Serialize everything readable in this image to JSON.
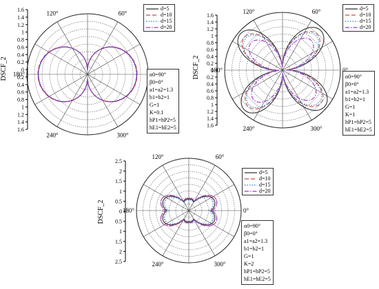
{
  "colors": {
    "d5": "#333333",
    "d10": "#c0504d",
    "d15": "#2e75b6",
    "d20": "#9b30d0"
  },
  "chart_data": [
    {
      "type": "polar",
      "ylabel": "DSCF_2",
      "angle_labels": [
        "120°",
        "60°",
        "180°",
        "0°",
        "240°",
        "300°"
      ],
      "r_ticks": [
        "1.6",
        "1.4",
        "1.2",
        "1",
        "0.8",
        "0.6",
        "0.4",
        "0.2",
        "0",
        "0.2",
        "0.4",
        "0.6",
        "0.8",
        "1",
        "1.2",
        "1.4",
        "1.6"
      ],
      "r_max": 1.6,
      "legend": [
        "d=5",
        "d=10",
        "d=15",
        "d=20"
      ],
      "params": [
        "α0=90°",
        "β0=0°",
        "a1=a2=1.3",
        "b1=b2=1",
        "G=1",
        "K=0.1",
        "hP1=hP2=5",
        "hE1=hE2=5"
      ],
      "series": [
        {
          "name": "d=5",
          "peak": 1.3,
          "shape": "dipole"
        },
        {
          "name": "d=10",
          "peak": 1.31,
          "shape": "dipole"
        },
        {
          "name": "d=15",
          "peak": 1.29,
          "shape": "dipole"
        },
        {
          "name": "d=20",
          "peak": 1.3,
          "shape": "dipole"
        }
      ]
    },
    {
      "type": "polar",
      "ylabel": "DSCF_2",
      "angle_labels": [
        "120°",
        "60°",
        "180°",
        "0°",
        "240°",
        "300°"
      ],
      "r_ticks": [
        "1.6",
        "1.4",
        "1.2",
        "1",
        "0.8",
        "0.6",
        "0.4",
        "0.2",
        "0",
        "0.2",
        "0.4",
        "0.6",
        "0.8",
        "1",
        "1.2",
        "1.4",
        "1.6"
      ],
      "r_max": 1.6,
      "legend": [
        "d=5",
        "d=10",
        "d=15",
        "d=20"
      ],
      "params": [
        "α0=90°",
        "β0=0°",
        "a1=a2=1.3",
        "b1=b2=1",
        "G=1",
        "K=1",
        "hP1=hP2=5",
        "hE1=hE2=5"
      ],
      "series": [
        {
          "name": "d=5",
          "peak": 1.6,
          "shape": "quad"
        },
        {
          "name": "d=10",
          "peak": 1.45,
          "shape": "quad"
        },
        {
          "name": "d=15",
          "peak": 1.4,
          "shape": "quad"
        },
        {
          "name": "d=20",
          "peak": 1.2,
          "shape": "quad"
        }
      ]
    },
    {
      "type": "polar",
      "ylabel": "DSCF_2",
      "angle_labels": [
        "120°",
        "60°",
        "180°",
        "0°",
        "240°",
        "300°"
      ],
      "r_ticks": [
        "2.5",
        "2",
        "1.5",
        "1",
        "0.5",
        "0",
        "0.5",
        "1",
        "1.5",
        "2",
        "2.5"
      ],
      "r_max": 2.5,
      "legend": [
        "d=5",
        "d=10",
        "d=15",
        "d=20"
      ],
      "params": [
        "α0=90°",
        "β0=0°",
        "a1=a2=1.3",
        "b1=b2=1",
        "G=1",
        "K=2",
        "hP1=hP2=5",
        "hE1=hE2=5"
      ],
      "series": [
        {
          "name": "d=5",
          "peak": 1.4,
          "shape": "multi"
        },
        {
          "name": "d=10",
          "peak": 1.5,
          "shape": "multi"
        },
        {
          "name": "d=15",
          "peak": 1.3,
          "shape": "multi"
        },
        {
          "name": "d=20",
          "peak": 1.5,
          "shape": "multi"
        }
      ]
    }
  ]
}
